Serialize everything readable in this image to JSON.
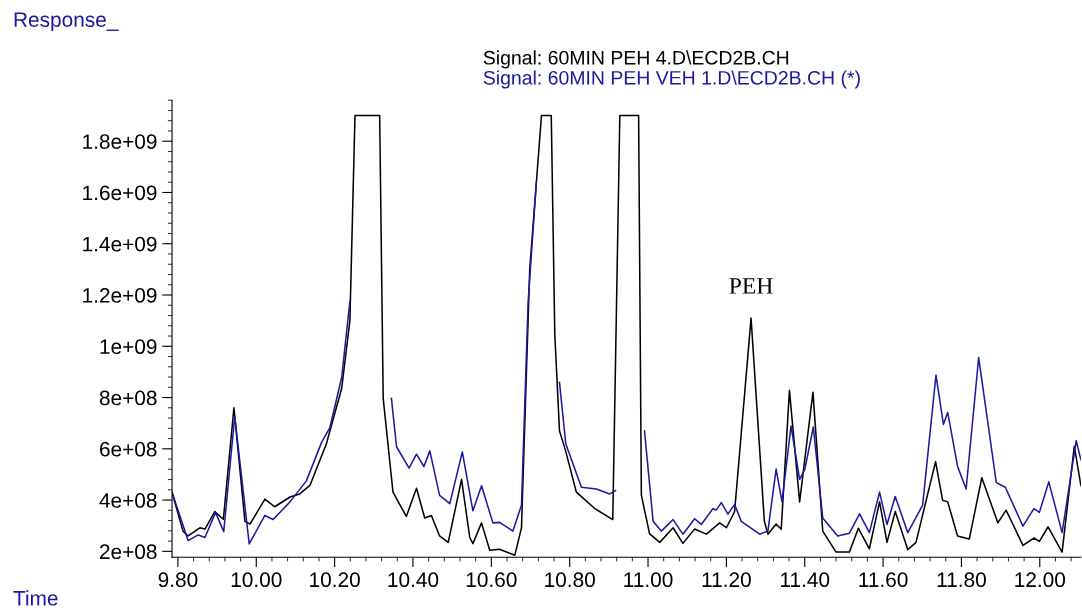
{
  "chart_data": {
    "type": "line",
    "ylabel": "Response_",
    "xlabel": "Time",
    "xlim": [
      9.785,
      12.105
    ],
    "ylim": [
      177000000.0,
      1960000000.0
    ],
    "xticks": [
      {
        "value": 9.8,
        "label": "9.80"
      },
      {
        "value": 10.0,
        "label": "10.00"
      },
      {
        "value": 10.2,
        "label": "10.20"
      },
      {
        "value": 10.4,
        "label": "10.40"
      },
      {
        "value": 10.6,
        "label": "10.60"
      },
      {
        "value": 10.8,
        "label": "10.80"
      },
      {
        "value": 11.0,
        "label": "11.00"
      },
      {
        "value": 11.2,
        "label": "11.20"
      },
      {
        "value": 11.4,
        "label": "11.40"
      },
      {
        "value": 11.6,
        "label": "11.60"
      },
      {
        "value": 11.8,
        "label": "11.80"
      },
      {
        "value": 12.0,
        "label": "12.00"
      }
    ],
    "yticks": [
      {
        "value": 200000000.0,
        "label": "2e+08"
      },
      {
        "value": 400000000.0,
        "label": "4e+08"
      },
      {
        "value": 600000000.0,
        "label": "6e+08"
      },
      {
        "value": 800000000.0,
        "label": "8e+08"
      },
      {
        "value": 1000000000.0,
        "label": "1e+09"
      },
      {
        "value": 1200000000.0,
        "label": "1.2e+09"
      },
      {
        "value": 1400000000.0,
        "label": "1.4e+09"
      },
      {
        "value": 1600000000.0,
        "label": "1.6e+09"
      },
      {
        "value": 1800000000.0,
        "label": "1.8e+09"
      }
    ],
    "grid": false,
    "legend": "top",
    "marker": "none",
    "line_style": "solid",
    "annotations": [
      {
        "text": "PEH",
        "x": 11.263,
        "y": 1110000000.0
      }
    ],
    "series": [
      {
        "name": "Signal: 60MIN PEH 4.D\\ECD2B.CH",
        "color": "#000000",
        "x": [
          9.785,
          9.813,
          9.826,
          9.856,
          9.869,
          9.894,
          9.916,
          9.943,
          9.971,
          9.984,
          10.022,
          10.047,
          10.086,
          10.111,
          10.137,
          10.179,
          10.218,
          10.239,
          10.252,
          10.315,
          10.324,
          10.349,
          10.383,
          10.409,
          10.43,
          10.447,
          10.468,
          10.49,
          10.524,
          10.545,
          10.553,
          10.575,
          10.596,
          10.621,
          10.66,
          10.677,
          10.698,
          10.728,
          10.753,
          10.762,
          10.774,
          10.79,
          10.817,
          10.864,
          10.91,
          10.928,
          10.976,
          10.983,
          11.004,
          11.03,
          11.064,
          11.089,
          11.119,
          11.149,
          11.183,
          11.2,
          11.221,
          11.263,
          11.297,
          11.306,
          11.327,
          11.34,
          11.361,
          11.387,
          11.421,
          11.446,
          11.48,
          11.514,
          11.537,
          11.565,
          11.591,
          11.61,
          11.631,
          11.663,
          11.684,
          11.734,
          11.752,
          11.765,
          11.79,
          11.82,
          11.852,
          11.893,
          11.914,
          11.957,
          11.985,
          11.999,
          12.021,
          12.057,
          12.088,
          12.105
        ],
        "values": [
          430000000.0,
          279000000.0,
          260000000.0,
          292000000.0,
          287000000.0,
          355000000.0,
          325000000.0,
          760000000.0,
          317000000.0,
          306000000.0,
          404000000.0,
          374000000.0,
          412000000.0,
          424000000.0,
          457000000.0,
          620000000.0,
          835000000.0,
          1100000000.0,
          1900000000.0,
          1900000000.0,
          797000000.0,
          431000000.0,
          336000000.0,
          446000000.0,
          330000000.0,
          340000000.0,
          260000000.0,
          235000000.0,
          481000000.0,
          254000000.0,
          230000000.0,
          311000000.0,
          204000000.0,
          208000000.0,
          185000000.0,
          292000000.0,
          1300000000.0,
          1900000000.0,
          1900000000.0,
          1048000000.0,
          670000000.0,
          590000000.0,
          431000000.0,
          367000000.0,
          324000000.0,
          1900000000.0,
          1900000000.0,
          419000000.0,
          268000000.0,
          235000000.0,
          292000000.0,
          231000000.0,
          287000000.0,
          267000000.0,
          311000000.0,
          292000000.0,
          355000000.0,
          1110000000.0,
          317000000.0,
          267000000.0,
          307000000.0,
          286000000.0,
          828000000.0,
          393000000.0,
          821000000.0,
          279000000.0,
          197000000.0,
          197000000.0,
          290000000.0,
          210000000.0,
          393000000.0,
          235000000.0,
          355000000.0,
          206000000.0,
          235000000.0,
          550000000.0,
          399000000.0,
          393000000.0,
          260000000.0,
          248000000.0,
          487000000.0,
          311000000.0,
          361000000.0,
          223000000.0,
          252000000.0,
          239000000.0,
          295000000.0,
          197000000.0,
          610000000.0,
          456000000.0
        ]
      },
      {
        "name": "Signal: 60MIN PEH VEH 1.D\\ECD2B.CH (*)",
        "color": "#1a1aa0",
        "x": [
          9.785,
          9.826,
          9.852,
          9.869,
          9.896,
          9.917,
          9.945,
          9.982,
          10.022,
          10.043,
          10.086,
          10.128,
          10.167,
          10.188,
          10.218,
          10.239,
          10.252,
          10.334,
          10.345,
          10.358,
          10.39,
          10.409,
          10.428,
          10.443,
          10.468,
          10.494,
          10.526,
          10.553,
          10.575,
          10.604,
          10.621,
          10.655,
          10.677,
          10.694,
          10.715,
          10.736,
          10.766,
          10.774,
          10.79,
          10.83,
          10.868,
          10.902,
          10.917,
          10.934,
          10.983,
          10.991,
          11.013,
          11.034,
          11.064,
          11.089,
          11.119,
          11.136,
          11.166,
          11.174,
          11.187,
          11.204,
          11.221,
          11.238,
          11.285,
          11.306,
          11.327,
          11.342,
          11.365,
          11.387,
          11.4,
          11.422,
          11.446,
          11.484,
          11.514,
          11.54,
          11.565,
          11.591,
          11.61,
          11.631,
          11.663,
          11.701,
          11.735,
          11.754,
          11.765,
          11.79,
          11.812,
          11.844,
          11.889,
          11.912,
          11.957,
          11.985,
          11.999,
          12.023,
          12.057,
          12.093,
          12.105
        ],
        "values": [
          431000000.0,
          242000000.0,
          264000000.0,
          254000000.0,
          352000000.0,
          277000000.0,
          727000000.0,
          229000000.0,
          340000000.0,
          324000000.0,
          393000000.0,
          475000000.0,
          626000000.0,
          683000000.0,
          878000000.0,
          1175000000.0,
          null,
          null,
          797000000.0,
          608000000.0,
          525000000.0,
          579000000.0,
          531000000.0,
          592000000.0,
          418000000.0,
          386000000.0,
          588000000.0,
          358000000.0,
          456000000.0,
          311000000.0,
          313000000.0,
          279000000.0,
          380000000.0,
          1174000000.0,
          1640000000.0,
          null,
          null,
          859000000.0,
          620000000.0,
          450000000.0,
          443000000.0,
          424000000.0,
          437000000.0,
          null,
          null,
          670000000.0,
          317000000.0,
          279000000.0,
          324000000.0,
          267000000.0,
          327000000.0,
          305000000.0,
          367000000.0,
          361000000.0,
          390000000.0,
          345000000.0,
          383000000.0,
          317000000.0,
          267000000.0,
          279000000.0,
          521000000.0,
          393000000.0,
          689000000.0,
          481000000.0,
          519000000.0,
          685000000.0,
          330000000.0,
          260000000.0,
          271000000.0,
          346000000.0,
          273000000.0,
          431000000.0,
          305000000.0,
          414000000.0,
          273000000.0,
          380000000.0,
          888000000.0,
          695000000.0,
          742000000.0,
          532000000.0,
          443000000.0,
          956000000.0,
          468000000.0,
          450000000.0,
          298000000.0,
          367000000.0,
          352000000.0,
          471000000.0,
          273000000.0,
          632000000.0,
          557000000.0
        ]
      }
    ]
  }
}
